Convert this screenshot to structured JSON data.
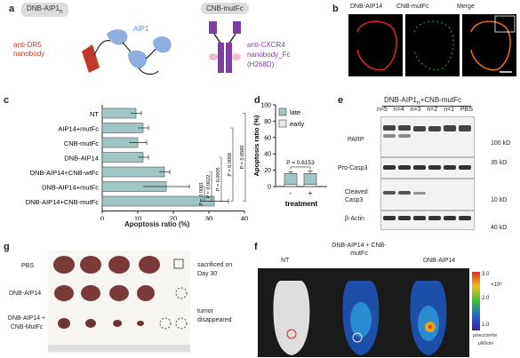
{
  "panel_a": {
    "letter": "a",
    "left_tag": "DNB-AIP1",
    "left_tag_sub": "n",
    "right_tag": "CNB-mutFc",
    "anti_dr5": "anti-DR5",
    "nanobody": "nanobody",
    "aip1": "AIP1",
    "anti_cxcr4": "anti-CXCR4",
    "nanobody_fc": "nanobody_Fc",
    "mutation": "(H268D)"
  },
  "panel_b": {
    "letter": "b",
    "labels": [
      "DNB-AIP14",
      "CNB-mutFc",
      "Merge"
    ]
  },
  "panel_c": {
    "letter": "c",
    "xlabel": "Apoptosis ratio (%)",
    "pvalues": [
      "P = 0.0560",
      "P = 0.0009",
      "P = 0.0005",
      "P = 0.0022",
      "P < 0.0001"
    ],
    "chart_data": {
      "type": "bar",
      "orientation": "horizontal",
      "categories": [
        "NT",
        "AIP14+mutFc",
        "CNB-mutFc",
        "DNB-AIP14",
        "DNB-AIP14+CNB-wtFc",
        "DNB-AIP14+mutFc",
        "DNB-AIP14+CNB-mutFc"
      ],
      "values": [
        9.5,
        11.5,
        10,
        11.5,
        17.5,
        18,
        31.5
      ],
      "errors": [
        1.5,
        1.5,
        2.5,
        1.5,
        1.5,
        6.5,
        4
      ],
      "xlim": [
        0,
        40
      ],
      "xticks": [
        0,
        10,
        20,
        30,
        40
      ],
      "xlabel": "Apoptosis ratio (%)",
      "bar_color": "#9fc6c4"
    }
  },
  "panel_d": {
    "letter": "d",
    "ylabel": "Apoptosis ratio (%)",
    "xlabel": "treatment",
    "xticks": [
      "-",
      "+"
    ],
    "pvalue": "P = 0.6153",
    "chart_data": {
      "type": "bar",
      "stacked": true,
      "categories": [
        "-",
        "+"
      ],
      "series": [
        {
          "name": "early",
          "values": [
            3,
            3
          ],
          "color": "#e8e8e8"
        },
        {
          "name": "late",
          "values": [
            13,
            13
          ],
          "color": "#9fc6c4"
        }
      ],
      "errors": [
        2,
        3
      ],
      "ylim": [
        0,
        100
      ],
      "yticks": [
        0,
        20,
        40,
        60,
        80,
        100
      ],
      "ylabel": "Apoptosis ratio (%)",
      "xlabel": "treatment"
    }
  },
  "panel_e": {
    "letter": "e",
    "title_pre": "DNB-AIP1",
    "title_sub": "n",
    "title_post": "+CNB-mutFc",
    "lanes": [
      "n=5",
      "n=4",
      "n=3",
      "n=2",
      "n=1",
      "PBS"
    ],
    "proteins": [
      "PARP",
      "Pro-Casp3",
      "Cleaved Casp3",
      "β-Actin"
    ],
    "weights": [
      "100 kD",
      "35 kD",
      "10 kD",
      "40 kD"
    ]
  },
  "panel_f": {
    "letter": "f",
    "labels": [
      "NT",
      "DNB-AIP14 + CNB-mutFc",
      "DNB-AIP14"
    ],
    "scale_values": [
      "3.0",
      "2.0",
      "1.0"
    ],
    "scale_exp": "×10⁸",
    "scale_unit": "p/sec/cm²/sr",
    "scale_unit2": "μW/cm²"
  },
  "panel_g": {
    "letter": "g",
    "rows": [
      "PBS",
      "DNB-AIP14",
      "DNB-AIP14 + CNB-MutFc"
    ],
    "sacrificed": "sacrificed on Day 30",
    "disappeared": "tumor disappeared"
  }
}
